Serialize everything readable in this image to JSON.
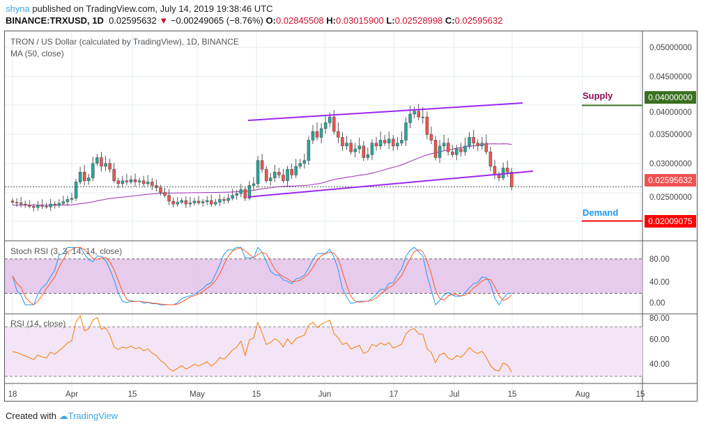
{
  "header": {
    "user": "shyna",
    "published": "published on TradingView.com, July 14, 2019 19:38:46 UTC",
    "symbol": "BINANCE:TRXUSD, 1D",
    "last": "0.02595632",
    "change": "−0.00249065 (−8.76%)",
    "o_label": "O:",
    "o": "0.02845508",
    "h_label": "H:",
    "h": "0.03015900",
    "l_label": "L:",
    "l": "0.02528998",
    "c_label": "C:",
    "c": "0.02595632"
  },
  "legend": {
    "title": "TRON / US Dollar (calculated by TradingView), 1D, BINANCE",
    "ma": "MA (50, close)",
    "stoch": "Stoch RSI (3, 3, 14, 14, close)",
    "rsi": "RSI (14, close)"
  },
  "annotations": {
    "supply": "Supply",
    "demand": "Demand"
  },
  "price_tags": {
    "supply": "0.04000000",
    "last": "0.02595632",
    "demand": "0.02009075"
  },
  "price_axis": [
    "0.05000000",
    "0.04500000",
    "0.04000000",
    "0.03500000",
    "0.03000000",
    "0.02500000"
  ],
  "stoch_axis": [
    "80.00",
    "40.00",
    "0.00"
  ],
  "rsi_axis": [
    "80.00",
    "60.00",
    "40.00"
  ],
  "time_axis": [
    "18",
    "Apr",
    "15",
    "May",
    "15",
    "Jun",
    "17",
    "Jul",
    "15",
    "Aug",
    "15"
  ],
  "footer": {
    "created": "Created with",
    "brand": "TradingView"
  },
  "colors": {
    "up": "#26a69a",
    "down": "#ef5350",
    "ma": "#9c27b0",
    "trend": "#9c27f0",
    "supply": "#3a7020",
    "demand": "#ff0000",
    "stoch_k": "#2196f3",
    "stoch_d": "#ff5722",
    "rsi": "#f57c00"
  },
  "chart_data": {
    "type": "candlestick",
    "start": "2019-03-18",
    "interval": "1D",
    "closes": [
      0.0233,
      0.0232,
      0.023,
      0.0228,
      0.0226,
      0.0224,
      0.0228,
      0.0226,
      0.0225,
      0.023,
      0.0228,
      0.0231,
      0.0234,
      0.0238,
      0.024,
      0.0268,
      0.0285,
      0.027,
      0.0275,
      0.03,
      0.031,
      0.0295,
      0.03,
      0.029,
      0.027,
      0.0265,
      0.027,
      0.0268,
      0.0272,
      0.0268,
      0.027,
      0.0265,
      0.0268,
      0.0262,
      0.0258,
      0.025,
      0.0245,
      0.0235,
      0.023,
      0.0233,
      0.0236,
      0.023,
      0.0232,
      0.0235,
      0.0232,
      0.0234,
      0.0236,
      0.023,
      0.0233,
      0.0238,
      0.0236,
      0.024,
      0.0245,
      0.0248,
      0.0255,
      0.024,
      0.0262,
      0.0265,
      0.0305,
      0.029,
      0.027,
      0.0275,
      0.0285,
      0.028,
      0.027,
      0.029,
      0.028,
      0.0295,
      0.03,
      0.0305,
      0.034,
      0.0355,
      0.0345,
      0.036,
      0.037,
      0.038,
      0.0355,
      0.0345,
      0.033,
      0.0335,
      0.032,
      0.0325,
      0.033,
      0.031,
      0.0315,
      0.0335,
      0.033,
      0.034,
      0.0335,
      0.0342,
      0.033,
      0.0335,
      0.034,
      0.037,
      0.0385,
      0.039,
      0.038,
      0.038,
      0.035,
      0.034,
      0.031,
      0.033,
      0.0335,
      0.032,
      0.0315,
      0.0325,
      0.032,
      0.033,
      0.0345,
      0.0335,
      0.033,
      0.0335,
      0.032,
      0.0295,
      0.028,
      0.0275,
      0.0292,
      0.0285,
      0.026
    ],
    "ylim": [
      0.018,
      0.052
    ],
    "supply": 0.04,
    "demand": 0.02009075
  }
}
